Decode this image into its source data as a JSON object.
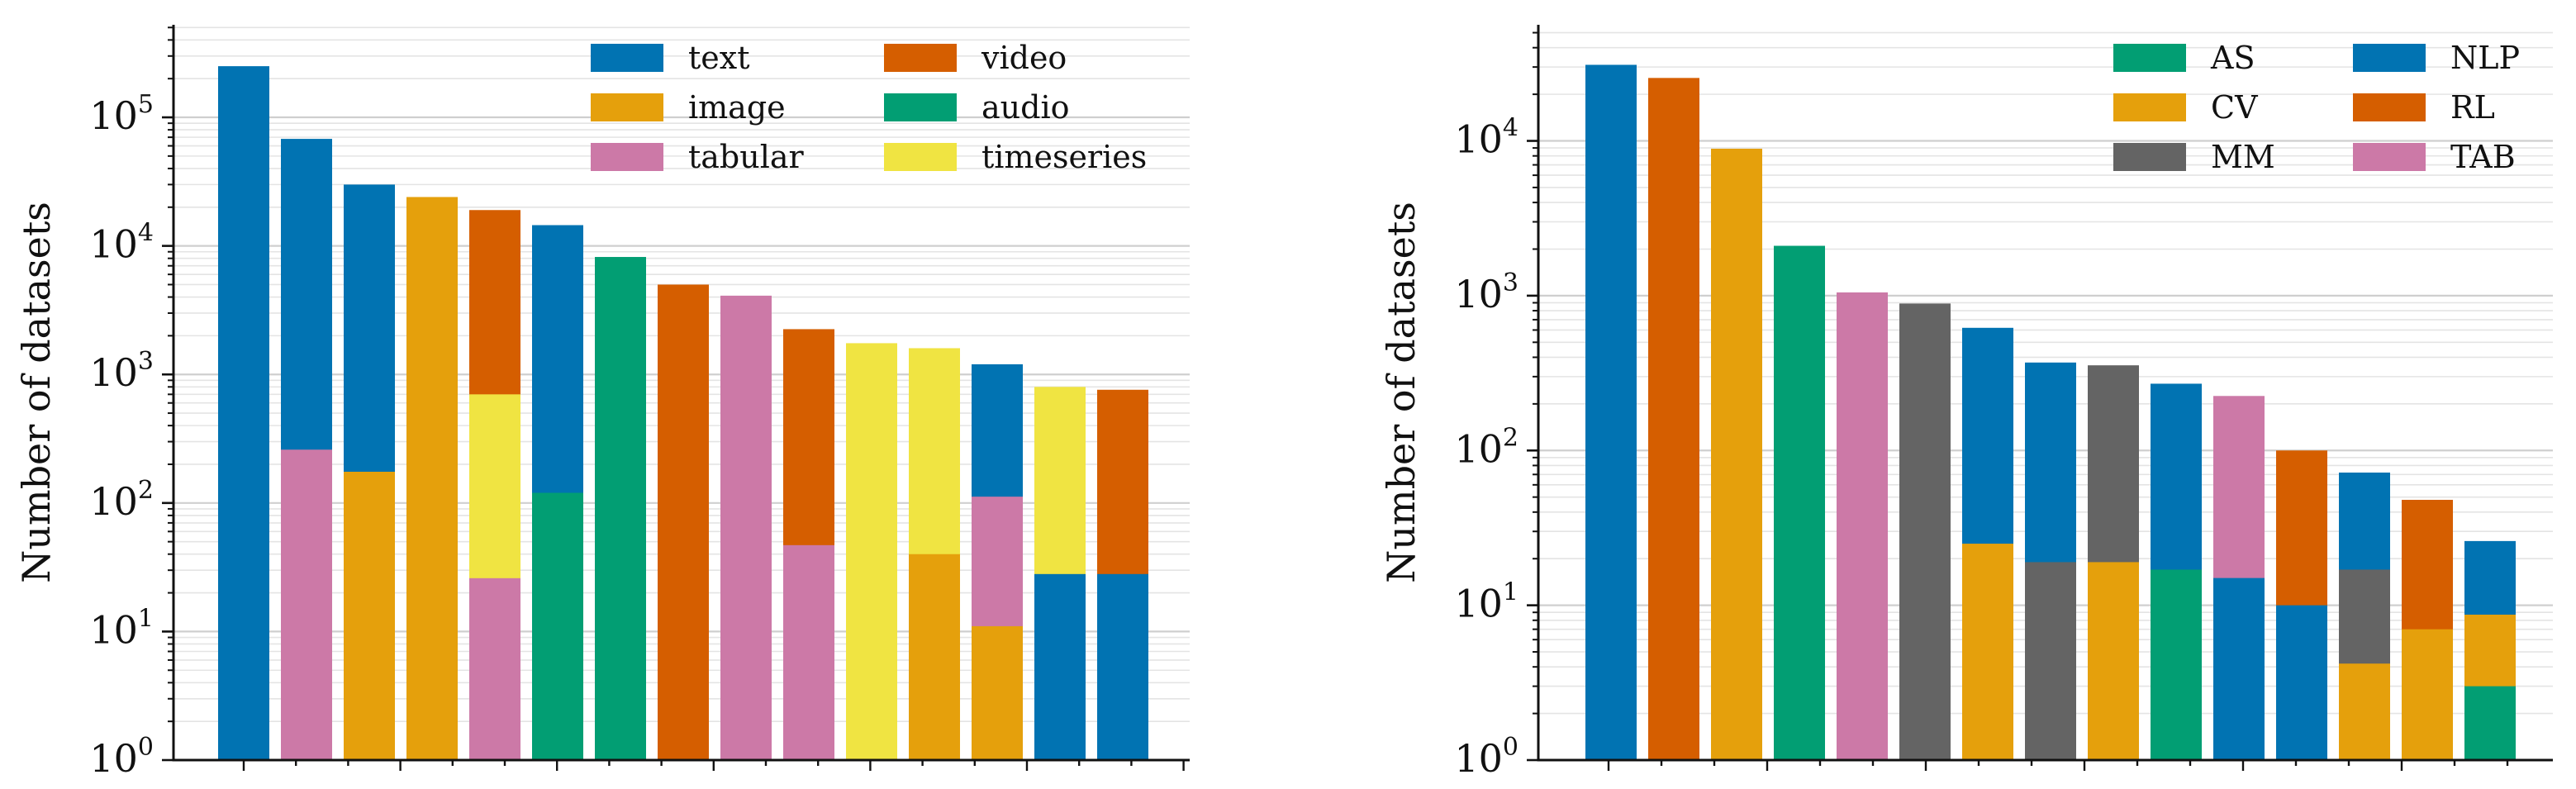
{
  "chart_data": [
    {
      "type": "bar",
      "stacked": true,
      "log_scale_y": true,
      "ylabel": "Number of datasets",
      "ylim": [
        1,
        500000
      ],
      "ytick_labels": [
        "10^0",
        "10^1",
        "10^2",
        "10^3",
        "10^4",
        "10^5"
      ],
      "grid": "horizontal major and minor",
      "legend_placement": "top-right",
      "legend": [
        {
          "name": "text",
          "color": "#0173b2"
        },
        {
          "name": "image",
          "color": "#e5a00c"
        },
        {
          "name": "tabular",
          "color": "#cc79a7"
        },
        {
          "name": "video",
          "color": "#d55e00"
        },
        {
          "name": "audio",
          "color": "#029e73"
        },
        {
          "name": "timeseries",
          "color": "#f0e442"
        }
      ],
      "bars": [
        {
          "segments": [
            {
              "series": "text",
              "value": 250000
            }
          ]
        },
        {
          "segments": [
            {
              "series": "tabular",
              "value": 260
            },
            {
              "series": "text",
              "value": 68000
            }
          ]
        },
        {
          "segments": [
            {
              "series": "image",
              "value": 175
            },
            {
              "series": "text",
              "value": 30000
            }
          ]
        },
        {
          "segments": [
            {
              "series": "image",
              "value": 24000
            }
          ]
        },
        {
          "segments": [
            {
              "series": "tabular",
              "value": 26
            },
            {
              "series": "timeseries",
              "value": 700
            },
            {
              "series": "video",
              "value": 19000
            }
          ]
        },
        {
          "segments": [
            {
              "series": "audio",
              "value": 120
            },
            {
              "series": "text",
              "value": 14500
            }
          ]
        },
        {
          "segments": [
            {
              "series": "audio",
              "value": 8200
            }
          ]
        },
        {
          "segments": [
            {
              "series": "video",
              "value": 5000
            }
          ]
        },
        {
          "segments": [
            {
              "series": "tabular",
              "value": 4100
            }
          ]
        },
        {
          "segments": [
            {
              "series": "tabular",
              "value": 47
            },
            {
              "series": "video",
              "value": 2250
            }
          ]
        },
        {
          "segments": [
            {
              "series": "timeseries",
              "value": 1750
            }
          ]
        },
        {
          "segments": [
            {
              "series": "image",
              "value": 40
            },
            {
              "series": "timeseries",
              "value": 1600
            }
          ]
        },
        {
          "segments": [
            {
              "series": "image",
              "value": 11
            },
            {
              "series": "tabular",
              "value": 112
            },
            {
              "series": "text",
              "value": 1200
            }
          ]
        },
        {
          "segments": [
            {
              "series": "text",
              "value": 28
            },
            {
              "series": "timeseries",
              "value": 800
            }
          ]
        },
        {
          "segments": [
            {
              "series": "text",
              "value": 28
            },
            {
              "series": "video",
              "value": 760
            }
          ]
        }
      ]
    },
    {
      "type": "bar",
      "stacked": true,
      "log_scale_y": true,
      "ylabel": "Number of datasets",
      "ylim": [
        1,
        50000
      ],
      "ytick_labels": [
        "10^0",
        "10^1",
        "10^2",
        "10^3",
        "10^4"
      ],
      "grid": "horizontal major and minor",
      "legend_placement": "top-right",
      "legend": [
        {
          "name": "AS",
          "color": "#029e73"
        },
        {
          "name": "CV",
          "color": "#e5a00c"
        },
        {
          "name": "MM",
          "color": "#646464"
        },
        {
          "name": "NLP",
          "color": "#0173b2"
        },
        {
          "name": "RL",
          "color": "#d55e00"
        },
        {
          "name": "TAB",
          "color": "#cc79a7"
        }
      ],
      "bars": [
        {
          "segments": [
            {
              "series": "NLP",
              "value": 31000
            }
          ]
        },
        {
          "segments": [
            {
              "series": "RL",
              "value": 25500
            }
          ]
        },
        {
          "segments": [
            {
              "series": "CV",
              "value": 8900
            }
          ]
        },
        {
          "segments": [
            {
              "series": "AS",
              "value": 2100
            }
          ]
        },
        {
          "segments": [
            {
              "series": "TAB",
              "value": 1050
            }
          ]
        },
        {
          "segments": [
            {
              "series": "MM",
              "value": 890
            }
          ]
        },
        {
          "segments": [
            {
              "series": "CV",
              "value": 25
            },
            {
              "series": "NLP",
              "value": 620
            }
          ]
        },
        {
          "segments": [
            {
              "series": "MM",
              "value": 19
            },
            {
              "series": "NLP",
              "value": 370
            }
          ]
        },
        {
          "segments": [
            {
              "series": "CV",
              "value": 19
            },
            {
              "series": "MM",
              "value": 355
            }
          ]
        },
        {
          "segments": [
            {
              "series": "AS",
              "value": 17
            },
            {
              "series": "NLP",
              "value": 270
            }
          ]
        },
        {
          "segments": [
            {
              "series": "NLP",
              "value": 15
            },
            {
              "series": "TAB",
              "value": 225
            }
          ]
        },
        {
          "segments": [
            {
              "series": "NLP",
              "value": 10
            },
            {
              "series": "RL",
              "value": 100
            }
          ]
        },
        {
          "segments": [
            {
              "series": "CV",
              "value": 4.2
            },
            {
              "series": "MM",
              "value": 17
            },
            {
              "series": "NLP",
              "value": 72
            }
          ]
        },
        {
          "segments": [
            {
              "series": "CV",
              "value": 7
            },
            {
              "series": "RL",
              "value": 48
            }
          ]
        },
        {
          "segments": [
            {
              "series": "AS",
              "value": 3
            },
            {
              "series": "CV",
              "value": 8.7
            },
            {
              "series": "NLP",
              "value": 26
            }
          ]
        }
      ]
    }
  ]
}
